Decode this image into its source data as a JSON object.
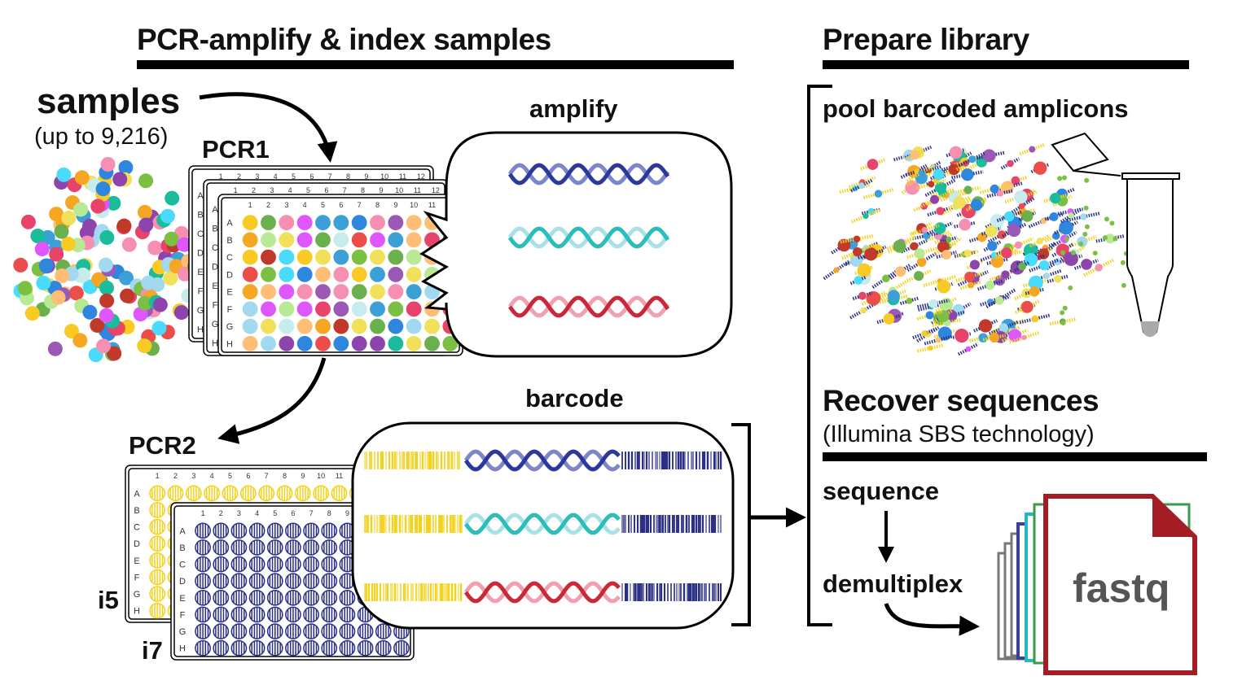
{
  "headings": {
    "left": "PCR-amplify & index samples",
    "prepare": "Prepare library",
    "recover": "Recover sequences",
    "recover_sub": "(Illumina SBS technology)"
  },
  "samples": {
    "title": "samples",
    "count": "(up to 9,216)"
  },
  "pcr1": {
    "label": "PCR1"
  },
  "pcr2": {
    "label": "PCR2",
    "i5": "i5",
    "i7": "i7"
  },
  "amplify": {
    "label": "amplify"
  },
  "barcode": {
    "label": "barcode"
  },
  "pool": {
    "label": "pool barcoded amplicons"
  },
  "steps": {
    "sequence": "sequence",
    "demultiplex": "demultiplex"
  },
  "output": {
    "label": "fastq"
  },
  "plate": {
    "columns": [
      "1",
      "2",
      "3",
      "4",
      "5",
      "6",
      "7",
      "8",
      "9",
      "10",
      "11",
      "12"
    ],
    "rows": [
      "A",
      "B",
      "C",
      "D",
      "E",
      "F",
      "G",
      "H"
    ]
  },
  "colors": {
    "dna_blue": "#2b3a9a",
    "dna_blue_light": "#7d86c8",
    "dna_teal": "#2bbcbc",
    "dna_teal_light": "#a9e2e6",
    "dna_red": "#c8283a",
    "dna_red_light": "#f0a0b0",
    "i5_yellow": "#f2d21c",
    "i7_navy": "#2b2f86",
    "file_red": "#a51d24"
  }
}
